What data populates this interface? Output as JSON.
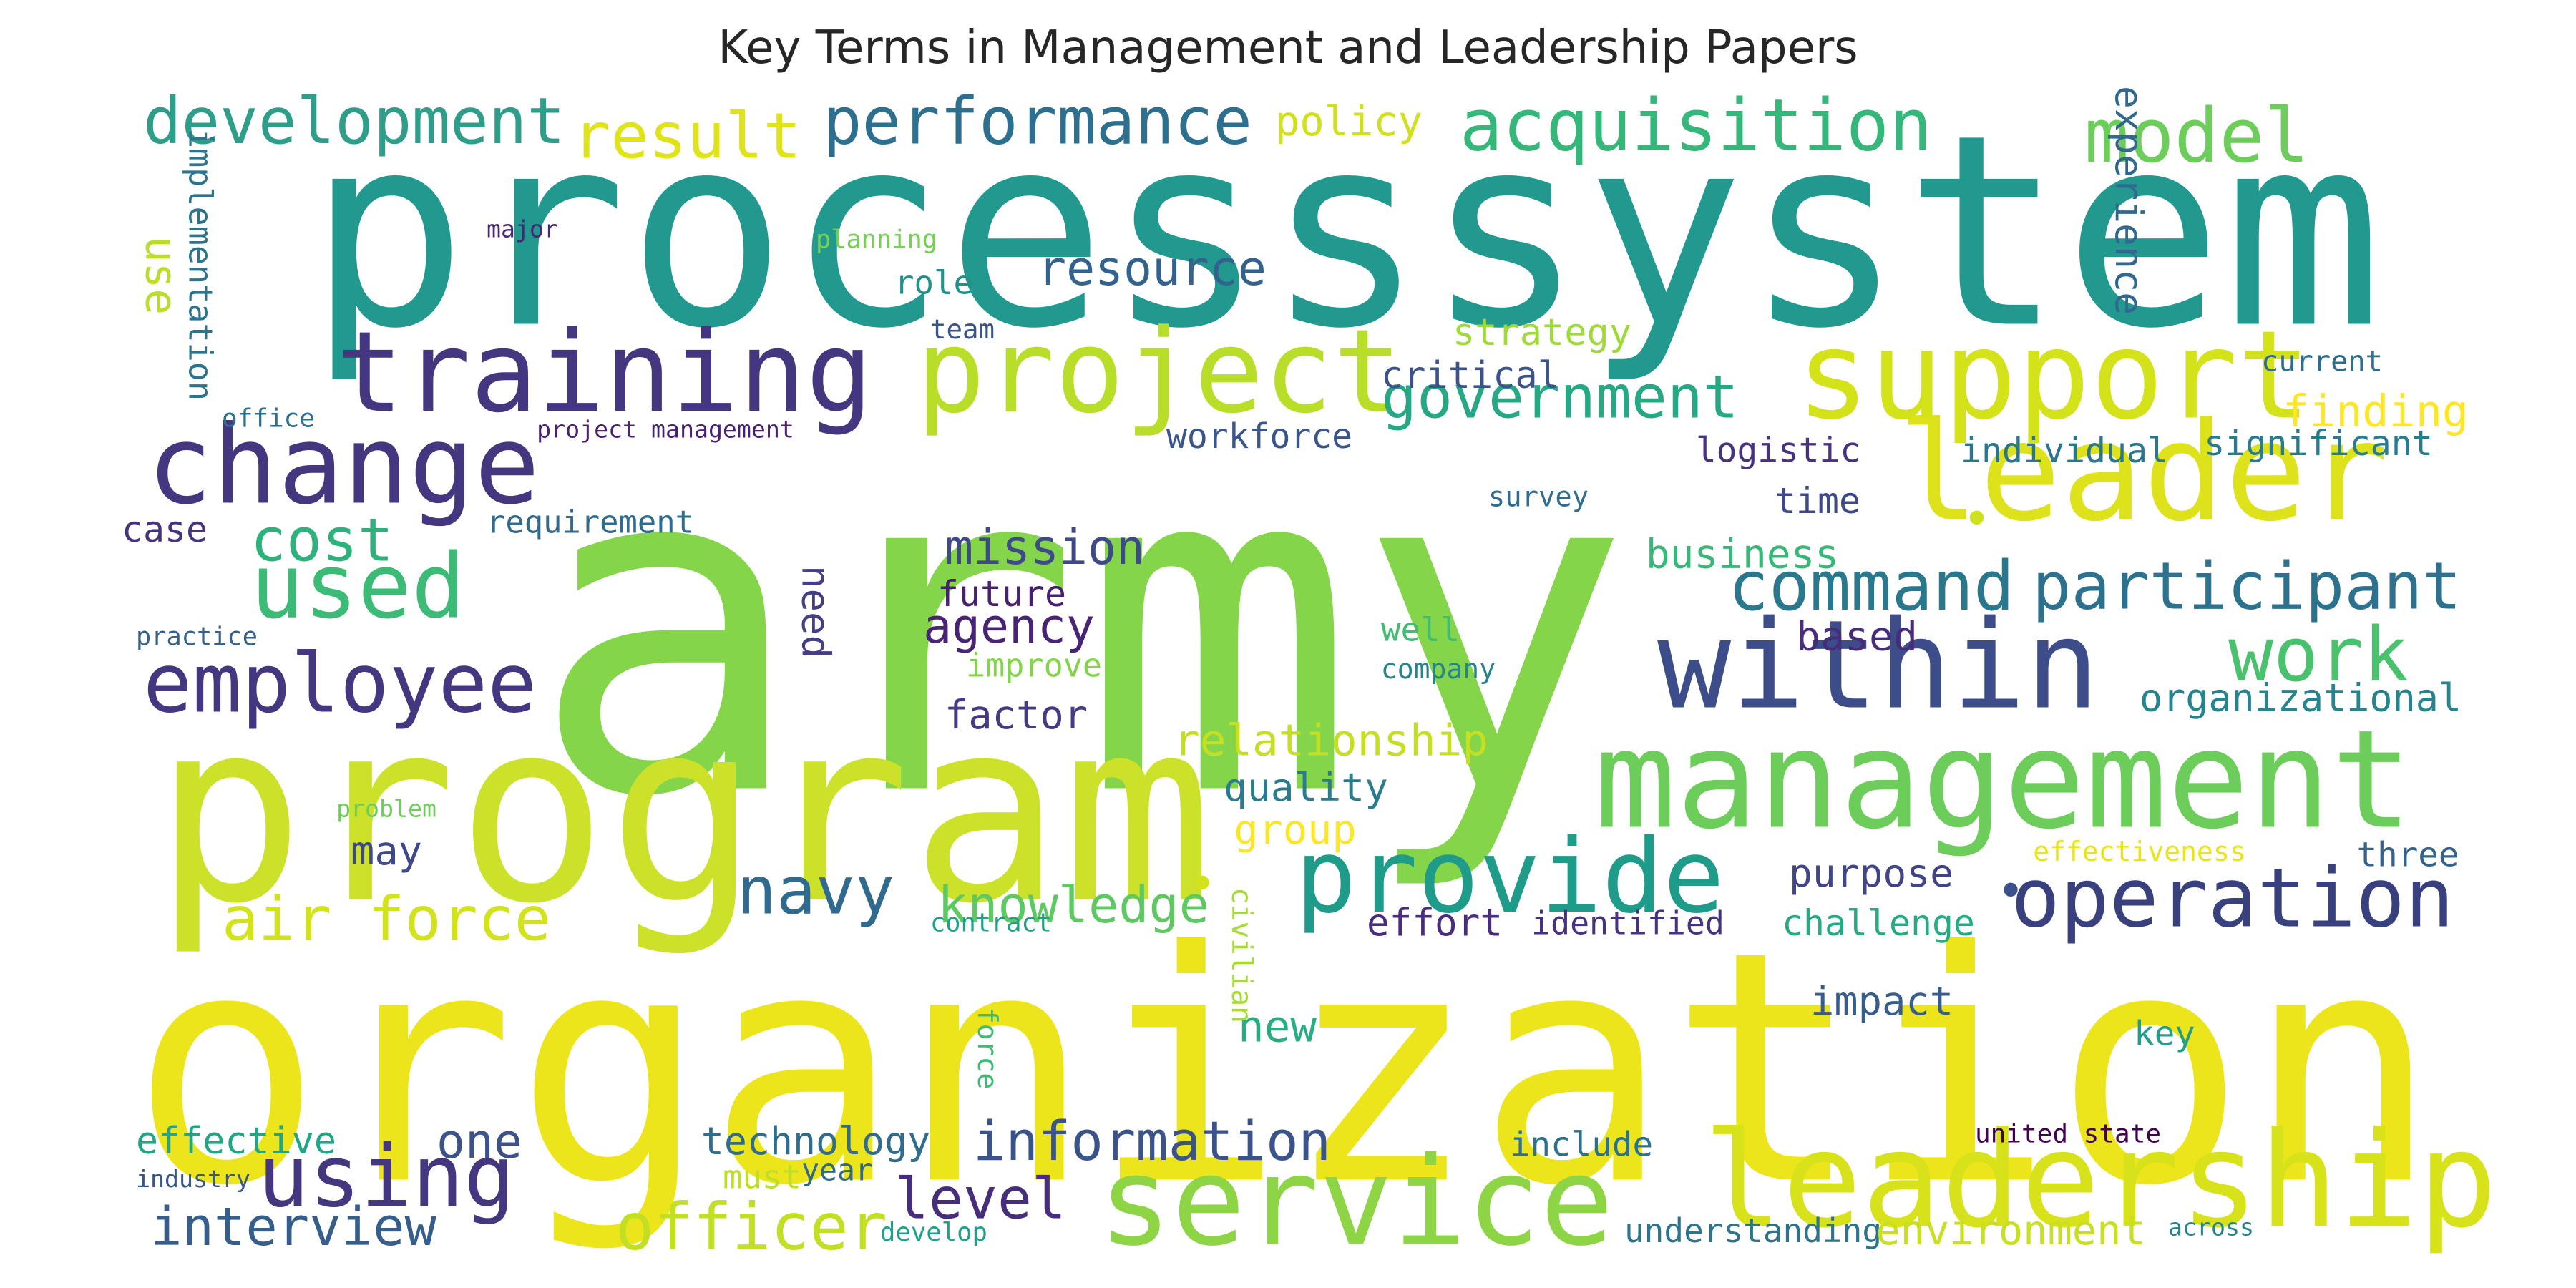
{
  "title": "Key Terms in Management and Leadership Papers",
  "colormap": "viridis",
  "words": [
    {
      "text": "processsystem",
      "color": "#21998f",
      "rotate": false
    },
    {
      "text": "army",
      "color": "#84d54a",
      "rotate": false
    },
    {
      "text": "organization",
      "color": "#ede51b",
      "rotate": false
    },
    {
      "text": "program",
      "color": "#cce22a",
      "rotate": false
    },
    {
      "text": "management",
      "color": "#6ccd5a",
      "rotate": false
    },
    {
      "text": "leadership",
      "color": "#d7e21b",
      "rotate": false
    },
    {
      "text": "within",
      "color": "#3c4d8a",
      "rotate": false
    },
    {
      "text": "service",
      "color": "#8dd545",
      "rotate": false
    },
    {
      "text": "leader",
      "color": "#dde21a",
      "rotate": false
    },
    {
      "text": "training",
      "color": "#453680",
      "rotate": false
    },
    {
      "text": "project",
      "color": "#b8de2a",
      "rotate": false
    },
    {
      "text": "support",
      "color": "#d4e21a",
      "rotate": false
    },
    {
      "text": "change",
      "color": "#453680",
      "rotate": false
    },
    {
      "text": "provide",
      "color": "#1f9c89",
      "rotate": false
    },
    {
      "text": "used",
      "color": "#3bbb75",
      "rotate": false
    },
    {
      "text": "operation",
      "color": "#38407e",
      "rotate": false
    },
    {
      "text": "employee",
      "color": "#453680",
      "rotate": false
    },
    {
      "text": "using",
      "color": "#453680",
      "rotate": false
    },
    {
      "text": "development",
      "color": "#2e9e8a",
      "rotate": false
    },
    {
      "text": "acquisition",
      "color": "#35b779",
      "rotate": false
    },
    {
      "text": "model",
      "color": "#6ccd5a",
      "rotate": false
    },
    {
      "text": "performance",
      "color": "#2d6f8e",
      "rotate": false
    },
    {
      "text": "result",
      "color": "#e0e31a",
      "rotate": false
    },
    {
      "text": "government",
      "color": "#26a884",
      "rotate": false
    },
    {
      "text": "command",
      "color": "#29788e",
      "rotate": false
    },
    {
      "text": "participant",
      "color": "#2c728e",
      "rotate": false
    },
    {
      "text": "air force",
      "color": "#d2e21b",
      "rotate": false
    },
    {
      "text": "cost",
      "color": "#2eb27c",
      "rotate": false
    },
    {
      "text": "navy",
      "color": "#306a8e",
      "rotate": false
    },
    {
      "text": "information",
      "color": "#3a538b",
      "rotate": false
    },
    {
      "text": "officer",
      "color": "#c2df23",
      "rotate": false
    },
    {
      "text": "interview",
      "color": "#355e8d",
      "rotate": false
    },
    {
      "text": "level",
      "color": "#472e7c",
      "rotate": false
    },
    {
      "text": "work",
      "color": "#4ac16d",
      "rotate": false
    },
    {
      "text": "relationship",
      "color": "#c6e021",
      "rotate": false
    },
    {
      "text": "knowledge",
      "color": "#5ec962",
      "rotate": false
    },
    {
      "text": "policy",
      "color": "#d0e11c",
      "rotate": false
    },
    {
      "text": "resource",
      "color": "#33638d",
      "rotate": false
    },
    {
      "text": "strategy",
      "color": "#a0da39",
      "rotate": false
    },
    {
      "text": "critical",
      "color": "#3b528b",
      "rotate": false
    },
    {
      "text": "experience",
      "color": "#31688e",
      "rotate": true
    },
    {
      "text": "finding",
      "color": "#fde725",
      "rotate": false
    },
    {
      "text": "mission",
      "color": "#3e4989",
      "rotate": false
    },
    {
      "text": "agency",
      "color": "#482475",
      "rotate": false
    },
    {
      "text": "logistic",
      "color": "#46327e",
      "rotate": false
    },
    {
      "text": "business",
      "color": "#37b878",
      "rotate": false
    },
    {
      "text": "workforce",
      "color": "#3a548c",
      "rotate": false
    },
    {
      "text": "individual",
      "color": "#2a768e",
      "rotate": false
    },
    {
      "text": "significant",
      "color": "#297b8e",
      "rotate": false
    },
    {
      "text": "organizational",
      "color": "#25848e",
      "rotate": false
    },
    {
      "text": "based",
      "color": "#472c7a",
      "rotate": false
    },
    {
      "text": "factor",
      "color": "#443b84",
      "rotate": false
    },
    {
      "text": "quality",
      "color": "#2a7b8e",
      "rotate": false
    },
    {
      "text": "group",
      "color": "#fde725",
      "rotate": false
    },
    {
      "text": "may",
      "color": "#3f4889",
      "rotate": false
    },
    {
      "text": "purpose",
      "color": "#414487",
      "rotate": false
    },
    {
      "text": "challenge",
      "color": "#25ab82",
      "rotate": false
    },
    {
      "text": "effort",
      "color": "#472d7b",
      "rotate": false
    },
    {
      "text": "identified",
      "color": "#46327e",
      "rotate": false
    },
    {
      "text": "impact",
      "color": "#365d8d",
      "rotate": false
    },
    {
      "text": "new",
      "color": "#27ad81",
      "rotate": false
    },
    {
      "text": "technology",
      "color": "#2f6c8e",
      "rotate": false
    },
    {
      "text": "effective",
      "color": "#21a685",
      "rotate": false
    },
    {
      "text": "one",
      "color": "#3b528b",
      "rotate": false
    },
    {
      "text": "include",
      "color": "#2c718e",
      "rotate": false
    },
    {
      "text": "understanding",
      "color": "#2b748e",
      "rotate": false
    },
    {
      "text": "environment",
      "color": "#c8e020",
      "rotate": false
    },
    {
      "text": "requirement",
      "color": "#2f6b8e",
      "rotate": false
    },
    {
      "text": "case",
      "color": "#46337f",
      "rotate": false
    },
    {
      "text": "time",
      "color": "#3e4989",
      "rotate": false
    },
    {
      "text": "future",
      "color": "#482071",
      "rotate": false
    },
    {
      "text": "need",
      "color": "#433e85",
      "rotate": true
    },
    {
      "text": "well",
      "color": "#40bd72",
      "rotate": false
    },
    {
      "text": "improve",
      "color": "#84d44b",
      "rotate": false
    },
    {
      "text": "use",
      "color": "#bade28",
      "rotate": true
    },
    {
      "text": "implementation",
      "color": "#2c738e",
      "rotate": true
    },
    {
      "text": "planning",
      "color": "#75d054",
      "rotate": false
    },
    {
      "text": "role",
      "color": "#20928c",
      "rotate": false
    },
    {
      "text": "team",
      "color": "#3a548c",
      "rotate": false
    },
    {
      "text": "major",
      "color": "#482677",
      "rotate": false
    },
    {
      "text": "office",
      "color": "#2d708e",
      "rotate": false
    },
    {
      "text": "project management",
      "color": "#482173",
      "rotate": false
    },
    {
      "text": "practice",
      "color": "#34618d",
      "rotate": false
    },
    {
      "text": "survey",
      "color": "#2e6d8e",
      "rotate": false
    },
    {
      "text": "current",
      "color": "#2e6f8e",
      "rotate": false
    },
    {
      "text": "company",
      "color": "#25858e",
      "rotate": false
    },
    {
      "text": "three",
      "color": "#33638d",
      "rotate": false
    },
    {
      "text": "effectiveness",
      "color": "#e8e419",
      "rotate": false
    },
    {
      "text": "problem",
      "color": "#6ccd5a",
      "rotate": false
    },
    {
      "text": "contract",
      "color": "#1fa088",
      "rotate": false
    },
    {
      "text": "civilian",
      "color": "#a5db36",
      "rotate": true
    },
    {
      "text": "force",
      "color": "#3ebc73",
      "rotate": true
    },
    {
      "text": "key",
      "color": "#1f9e89",
      "rotate": false
    },
    {
      "text": "united state",
      "color": "#440154",
      "rotate": false
    },
    {
      "text": "industry",
      "color": "#39568c",
      "rotate": false
    },
    {
      "text": "must",
      "color": "#bddf26",
      "rotate": false
    },
    {
      "text": "year",
      "color": "#31688e",
      "rotate": false
    },
    {
      "text": "develop",
      "color": "#1fa088",
      "rotate": false
    },
    {
      "text": "across",
      "color": "#26828e",
      "rotate": false
    },
    {
      "text": "•",
      "color": "#d2e21b",
      "rotate": false
    },
    {
      "text": "•",
      "color": "#3b528b",
      "rotate": false
    },
    {
      "text": "•",
      "color": "#cde11d",
      "rotate": false
    }
  ]
}
